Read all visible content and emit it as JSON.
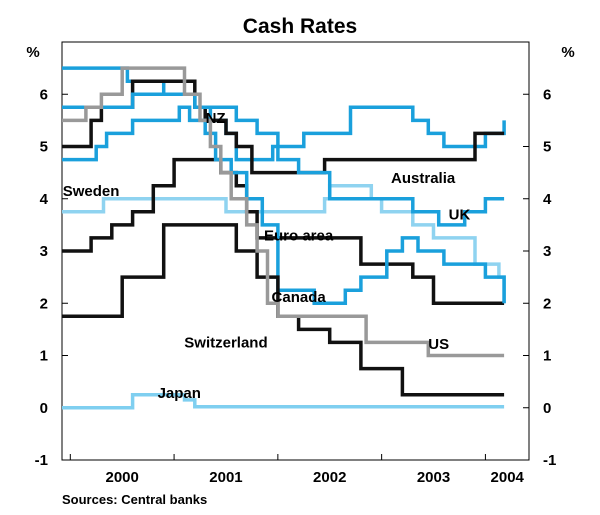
{
  "chart_data": {
    "type": "line",
    "title": "Cash Rates",
    "ylabel_left": "%",
    "ylabel_right": "%",
    "ylim": [
      -1,
      7
    ],
    "yticks": [
      -1,
      0,
      1,
      2,
      3,
      4,
      5,
      6
    ],
    "xlim": [
      1999.92,
      2004.42
    ],
    "xticks": [
      {
        "label": "2000",
        "x": 2000.0
      },
      {
        "label": "2001",
        "x": 2001.0
      },
      {
        "label": "2002",
        "x": 2002.0
      },
      {
        "label": "2003",
        "x": 2003.0
      },
      {
        "label": "2004",
        "x": 2004.0
      }
    ],
    "source": "Sources: Central banks",
    "series": [
      {
        "name": "NZ",
        "color": "#1aa0dc",
        "x": [
          1999.92,
          2000.0,
          2000.2,
          2000.3,
          2000.55,
          2000.62,
          2000.9,
          2001.2,
          2001.35,
          2001.5,
          2001.6,
          2001.7,
          2001.8,
          2001.95,
          2002.25,
          2002.7,
          2002.8,
          2002.9,
          2003.05,
          2003.3,
          2003.45,
          2003.6,
          2003.85,
          2004.0,
          2004.1,
          2004.18
        ],
        "y": [
          6.5,
          6.5,
          6.5,
          6.5,
          6.25,
          6.25,
          6.0,
          5.75,
          5.5,
          5.25,
          4.75,
          4.75,
          4.75,
          5.0,
          5.25,
          5.75,
          5.75,
          5.75,
          5.75,
          5.5,
          5.25,
          5.0,
          5.0,
          5.25,
          5.25,
          5.5
        ]
      },
      {
        "name": "Australia",
        "color": "#111111",
        "x": [
          1999.92,
          2000.0,
          2000.2,
          2000.3,
          2000.6,
          2001.1,
          2001.2,
          2001.3,
          2001.5,
          2001.6,
          2001.75,
          2002.35,
          2002.45,
          2003.75,
          2003.9,
          2004.18
        ],
        "y": [
          5.0,
          5.0,
          5.5,
          5.75,
          6.25,
          6.25,
          5.75,
          5.5,
          5.25,
          5.0,
          4.5,
          4.5,
          4.75,
          4.75,
          5.25,
          5.25
        ]
      },
      {
        "name": "Sweden",
        "color": "#8fd3f0",
        "x": [
          1999.92,
          2000.1,
          2000.2,
          2000.32,
          2000.5,
          2000.75,
          2001.02,
          2001.2,
          2001.5,
          2001.67,
          2001.8,
          2001.95,
          2002.0,
          2002.35,
          2002.45,
          2002.5,
          2002.65,
          2002.9,
          2003.0,
          2003.05,
          2003.3,
          2003.5,
          2003.9,
          2004.0,
          2004.13,
          2004.18
        ],
        "y": [
          3.75,
          3.75,
          3.75,
          4.0,
          4.0,
          4.0,
          4.0,
          4.0,
          3.75,
          3.75,
          3.75,
          3.75,
          3.75,
          3.75,
          4.0,
          4.25,
          4.25,
          4.0,
          3.75,
          3.75,
          3.5,
          3.25,
          2.75,
          2.75,
          2.5,
          2.0
        ]
      },
      {
        "name": "UK",
        "color": "#1aa0dc",
        "x": [
          1999.92,
          2000.05,
          2000.1,
          2000.6,
          2000.95,
          2001.2,
          2001.6,
          2001.8,
          2002.0,
          2002.2,
          2002.5,
          2002.8,
          2003.0,
          2003.3,
          2003.55,
          2003.8,
          2004.0,
          2004.18
        ],
        "y": [
          5.75,
          5.75,
          5.75,
          6.0,
          6.0,
          5.75,
          5.5,
          5.25,
          4.75,
          4.5,
          4.0,
          4.0,
          4.0,
          3.75,
          3.5,
          3.75,
          4.0,
          4.0
        ]
      },
      {
        "name": "Euro area",
        "color": "#111111",
        "x": [
          1999.92,
          2000.1,
          2000.2,
          2000.4,
          2000.6,
          2000.8,
          2001.0,
          2001.2,
          2001.3,
          2001.35,
          2001.45,
          2001.6,
          2001.7,
          2001.8,
          2002.0,
          2002.5,
          2002.8,
          2003.0,
          2003.3,
          2003.5,
          2003.7,
          2003.9,
          2004.0,
          2004.18
        ],
        "y": [
          3.0,
          3.0,
          3.25,
          3.5,
          3.75,
          4.25,
          4.75,
          4.75,
          4.75,
          4.75,
          4.5,
          4.25,
          3.75,
          3.25,
          3.25,
          3.25,
          2.75,
          2.75,
          2.5,
          2.0,
          2.0,
          2.0,
          2.0,
          2.0
        ]
      },
      {
        "name": "Canada",
        "color": "#1aa0dc",
        "x": [
          1999.92,
          2000.08,
          2000.25,
          2000.35,
          2000.6,
          2001.05,
          2001.15,
          2001.3,
          2001.4,
          2001.55,
          2001.7,
          2001.85,
          2002.0,
          2002.35,
          2002.5,
          2002.65,
          2002.8,
          2003.05,
          2003.2,
          2003.35,
          2003.6,
          2003.85,
          2004.0,
          2004.18
        ],
        "y": [
          4.75,
          4.75,
          5.0,
          5.25,
          5.5,
          5.75,
          5.5,
          5.25,
          4.75,
          4.5,
          4.0,
          3.5,
          2.25,
          2.0,
          2.0,
          2.25,
          2.5,
          3.0,
          3.25,
          3.0,
          2.75,
          2.75,
          2.5,
          2.0
        ]
      },
      {
        "name": "Switzerland",
        "color": "#111111",
        "x": [
          1999.92,
          2000.2,
          2000.5,
          2000.9,
          2001.2,
          2001.4,
          2001.6,
          2001.8,
          2002.0,
          2002.2,
          2002.5,
          2002.8,
          2003.0,
          2003.2,
          2003.4,
          2003.6,
          2004.0,
          2004.18
        ],
        "y": [
          1.75,
          1.75,
          2.5,
          3.5,
          3.5,
          3.5,
          3.0,
          2.5,
          1.75,
          1.5,
          1.25,
          0.75,
          0.75,
          0.25,
          0.25,
          0.25,
          0.25,
          0.25
        ]
      },
      {
        "name": "US",
        "color": "#999999",
        "x": [
          1999.92,
          2000.08,
          2000.15,
          2000.3,
          2000.5,
          2001.0,
          2001.1,
          2001.25,
          2001.35,
          2001.45,
          2001.55,
          2001.7,
          2001.8,
          2001.9,
          2002.0,
          2002.85,
          2003.45,
          2004.18
        ],
        "y": [
          5.5,
          5.5,
          5.75,
          6.0,
          6.5,
          6.5,
          6.0,
          5.5,
          5.0,
          4.5,
          4.0,
          3.5,
          3.0,
          2.0,
          1.75,
          1.25,
          1.0,
          1.0
        ]
      },
      {
        "name": "Japan",
        "color": "#7fcff0",
        "x": [
          1999.92,
          2000.1,
          2000.6,
          2000.7,
          2001.0,
          2001.1,
          2001.2,
          2002.0,
          2004.18
        ],
        "y": [
          0.0,
          0.0,
          0.25,
          0.25,
          0.25,
          0.15,
          0.02,
          0.02,
          0.02
        ]
      }
    ],
    "labels": [
      {
        "text": "NZ",
        "x": 2001.4,
        "y": 5.55
      },
      {
        "text": "Sweden",
        "x": 2000.2,
        "y": 4.15
      },
      {
        "text": "Australia",
        "x": 2003.4,
        "y": 4.4
      },
      {
        "text": "UK",
        "x": 2003.75,
        "y": 3.7
      },
      {
        "text": "Euro area",
        "x": 2002.2,
        "y": 3.3
      },
      {
        "text": "Canada",
        "x": 2002.2,
        "y": 2.12
      },
      {
        "text": "Switzerland",
        "x": 2001.5,
        "y": 1.25
      },
      {
        "text": "US",
        "x": 2003.55,
        "y": 1.22
      },
      {
        "text": "Japan",
        "x": 2001.05,
        "y": 0.28
      }
    ]
  }
}
